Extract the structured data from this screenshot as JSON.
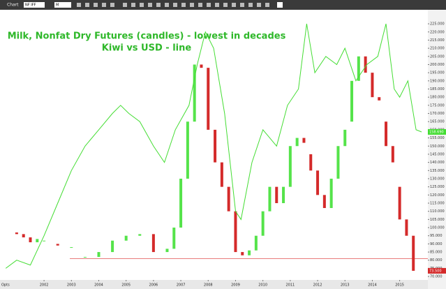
{
  "ui": {
    "window_title": "Chart",
    "symbol": "NF IFF",
    "interval": "M",
    "options": "Opts"
  },
  "chart_data": {
    "type": "candlestick",
    "title": "Milk, Nonfat Dry Futures (candles) - lowest in decades",
    "subtitle": "Kiwi vs USD - line",
    "xlim": [
      2000.39,
      2016.03
    ],
    "xticks": [
      2002,
      2003,
      2004,
      2005,
      2006,
      2007,
      2008,
      2009,
      2010,
      2011,
      2012,
      2013,
      2014,
      2015
    ],
    "ylim": [
      67.9,
      233.6
    ],
    "yticks": [
      {
        "value": 70,
        "label": "70.000"
      },
      {
        "value": 75,
        "label": "75.000"
      },
      {
        "value": 80,
        "label": "80.000"
      },
      {
        "value": 85,
        "label": "85.000"
      },
      {
        "value": 90,
        "label": "90.000"
      },
      {
        "value": 95,
        "label": "95.000"
      },
      {
        "value": 100,
        "label": "100.000"
      },
      {
        "value": 105,
        "label": "105.000"
      },
      {
        "value": 110,
        "label": "110.000"
      },
      {
        "value": 115,
        "label": "115.000"
      },
      {
        "value": 120,
        "label": "120.000"
      },
      {
        "value": 125,
        "label": "125.000"
      },
      {
        "value": 130,
        "label": "130.000"
      },
      {
        "value": 135,
        "label": "135.000"
      },
      {
        "value": 140,
        "label": "140.000"
      },
      {
        "value": 145,
        "label": "145.000"
      },
      {
        "value": 150,
        "label": "150.000"
      },
      {
        "value": 155,
        "label": "155.000"
      },
      {
        "value": 160,
        "label": "160.000"
      },
      {
        "value": 165,
        "label": "165.000"
      },
      {
        "value": 170,
        "label": "170.000"
      },
      {
        "value": 175,
        "label": "175.000"
      },
      {
        "value": 180,
        "label": "180.000"
      },
      {
        "value": 185,
        "label": "185.000"
      },
      {
        "value": 190,
        "label": "190.000"
      },
      {
        "value": 195,
        "label": "195.000"
      },
      {
        "value": 200,
        "label": "200.000"
      },
      {
        "value": 205,
        "label": "205.000"
      },
      {
        "value": 210,
        "label": "210.000"
      },
      {
        "value": 215,
        "label": "215.000"
      },
      {
        "value": 220,
        "label": "220.000"
      },
      {
        "value": 225,
        "label": "225.000"
      }
    ],
    "up_color": "#55e34a",
    "down_color": "#d42a2a",
    "candles": {
      "x": [
        2001.0,
        2001.25,
        2001.5,
        2001.75,
        2002.0,
        2002.5,
        2003.0,
        2003.5,
        2004.0,
        2004.5,
        2005.0,
        2005.5,
        2006.0,
        2006.5,
        2006.75,
        2007.0,
        2007.25,
        2007.5,
        2007.75,
        2008.0,
        2008.25,
        2008.5,
        2008.75,
        2009.0,
        2009.25,
        2009.5,
        2009.75,
        2010.0,
        2010.25,
        2010.5,
        2010.75,
        2011.0,
        2011.25,
        2011.5,
        2011.75,
        2012.0,
        2012.25,
        2012.5,
        2012.75,
        2013.0,
        2013.25,
        2013.5,
        2013.75,
        2014.0,
        2014.25,
        2014.5,
        2014.75,
        2015.0,
        2015.25,
        2015.5
      ],
      "open": [
        97,
        96,
        94,
        91,
        92,
        90,
        88,
        82,
        82,
        85,
        92,
        95,
        96,
        85,
        87,
        100,
        130,
        165,
        200,
        198,
        160,
        140,
        125,
        110,
        85,
        83,
        86,
        95,
        110,
        125,
        115,
        125,
        150,
        155,
        145,
        135,
        120,
        112,
        130,
        150,
        165,
        190,
        205,
        195,
        180,
        165,
        150,
        125,
        105,
        95
      ],
      "close": [
        96,
        94,
        91,
        93,
        92,
        89,
        88,
        82,
        85,
        92,
        95,
        96,
        85,
        87,
        100,
        130,
        165,
        200,
        198,
        160,
        140,
        125,
        110,
        85,
        83,
        86,
        95,
        110,
        125,
        115,
        125,
        150,
        155,
        152,
        135,
        120,
        112,
        130,
        150,
        160,
        190,
        205,
        195,
        180,
        178,
        150,
        140,
        105,
        95,
        73.5
      ],
      "end_label": "73.500"
    },
    "series": [
      {
        "name": "Kiwi vs USD",
        "color": "#44dd33",
        "x": [
          2000.6,
          2001.0,
          2001.5,
          2002.0,
          2002.5,
          2003.0,
          2003.5,
          2004.0,
          2004.5,
          2004.8,
          2005.1,
          2005.5,
          2006.0,
          2006.4,
          2006.8,
          2007.3,
          2007.6,
          2007.9,
          2008.2,
          2008.6,
          2009.0,
          2009.2,
          2009.6,
          2010.0,
          2010.5,
          2010.9,
          2011.3,
          2011.6,
          2011.9,
          2012.3,
          2012.7,
          2013.0,
          2013.4,
          2013.8,
          2014.2,
          2014.5,
          2014.8,
          2015.0,
          2015.3,
          2015.6,
          2015.8
        ],
        "values": [
          75,
          80,
          77,
          95,
          115,
          135,
          150,
          160,
          170,
          175,
          170,
          165,
          150,
          140,
          160,
          175,
          200,
          220,
          210,
          170,
          110,
          105,
          140,
          160,
          150,
          175,
          185,
          225,
          195,
          205,
          200,
          210,
          190,
          200,
          205,
          225,
          185,
          180,
          190,
          160,
          158.69
        ],
        "end_label": "158.690"
      }
    ],
    "reference_line": {
      "value": 81,
      "color": "#e05050"
    }
  }
}
